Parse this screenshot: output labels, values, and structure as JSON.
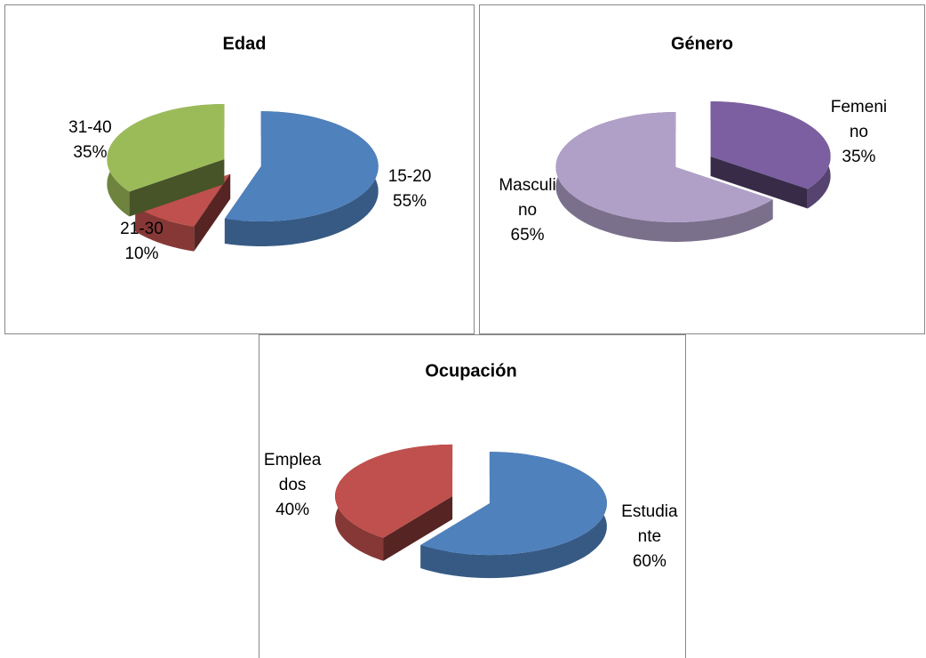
{
  "chart_data": [
    {
      "type": "pie",
      "title": "Edad",
      "categories": [
        "15-20",
        "21-30",
        "31-40"
      ],
      "values": [
        55,
        10,
        35
      ],
      "value_labels": [
        "55%",
        "10%",
        "35%"
      ],
      "colors": [
        "#4f81bd",
        "#c0504d",
        "#9bbb59"
      ]
    },
    {
      "type": "pie",
      "title": "Género",
      "categories": [
        "Femenino",
        "Masculino"
      ],
      "values": [
        35,
        65
      ],
      "value_labels": [
        "35%",
        "65%"
      ],
      "colors": [
        "#7b5fa0",
        "#b0a0c8"
      ]
    },
    {
      "type": "pie",
      "title": "Ocupación",
      "categories": [
        "Estudiante",
        "Empleados"
      ],
      "values": [
        60,
        40
      ],
      "value_labels": [
        "60%",
        "40%"
      ],
      "colors": [
        "#4f81bd",
        "#c0504d"
      ]
    }
  ]
}
